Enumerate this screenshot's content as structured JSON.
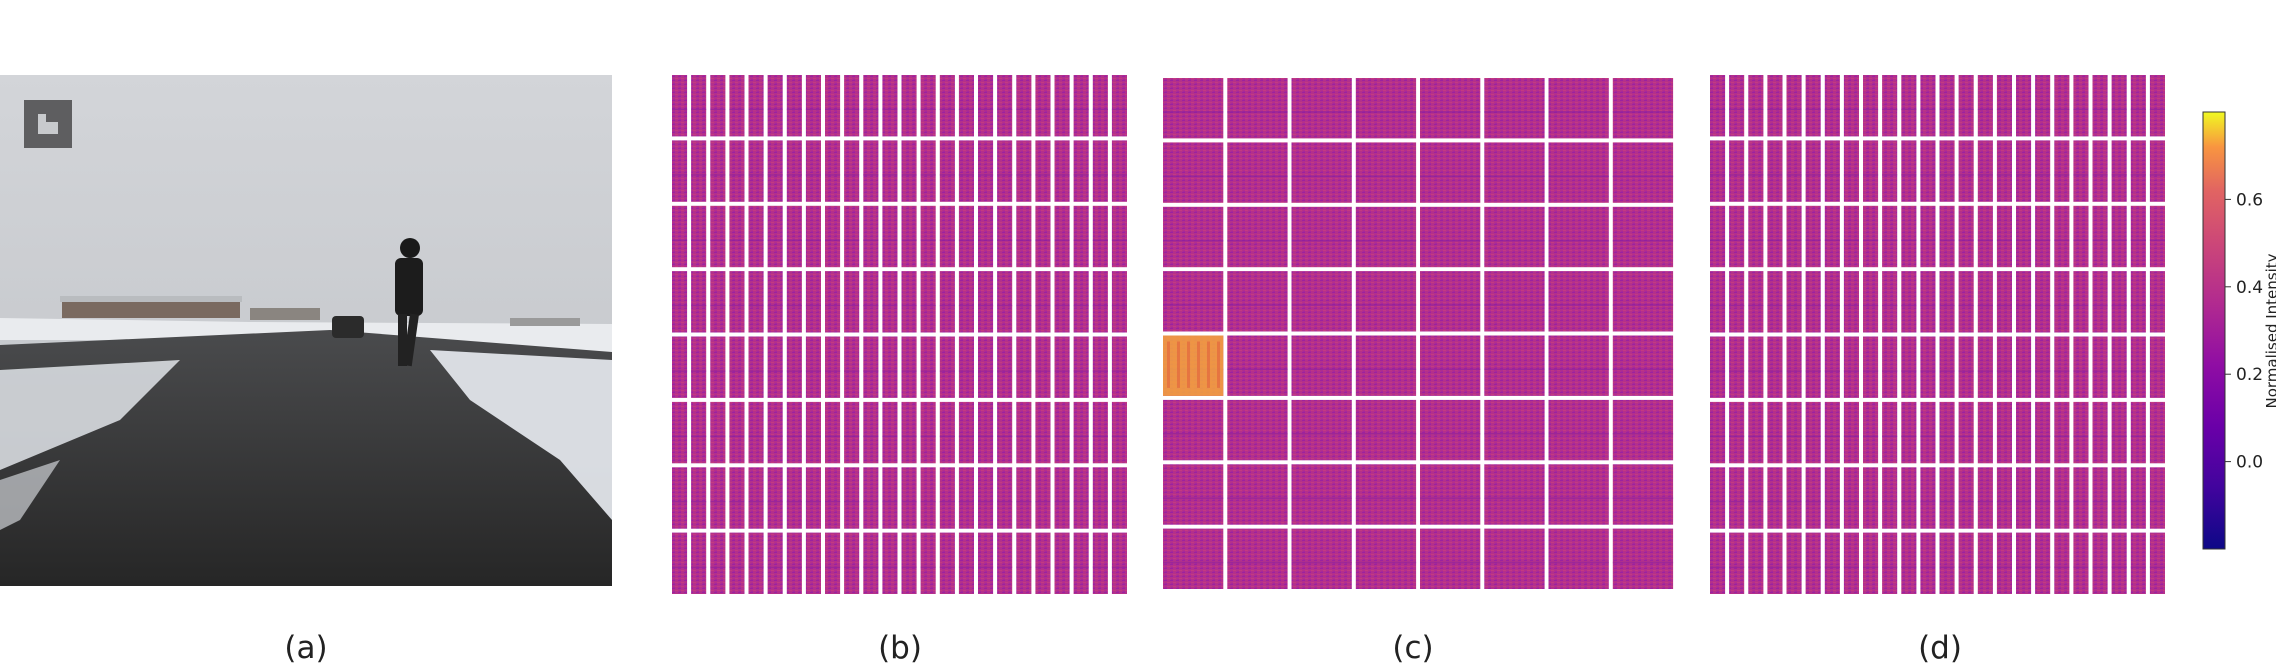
{
  "panels": [
    {
      "id": "a",
      "caption": "(a)"
    },
    {
      "id": "b",
      "caption": "(b)"
    },
    {
      "id": "c",
      "caption": "(c)"
    },
    {
      "id": "d",
      "caption": "(d)"
    }
  ],
  "colorbar": {
    "label": "Normalised Intensity",
    "colormap": "plasma",
    "ticks": [
      "0.6",
      "0.4",
      "0.2",
      "0.0"
    ],
    "range": [
      -0.2,
      0.8
    ]
  },
  "grids": {
    "b": {
      "rows": 8,
      "cols": 24
    },
    "c": {
      "rows": 8,
      "cols": 8
    },
    "d": {
      "rows": 8,
      "cols": 24
    }
  },
  "colors": {
    "cell_base": "#b52f8c",
    "cell_dark": "#8a1fa0",
    "cell_hot": "#f7a63a",
    "photo_sky": "#c9cbcf",
    "photo_road": "#2f2f2f",
    "photo_snow": "#e6e8ec"
  }
}
